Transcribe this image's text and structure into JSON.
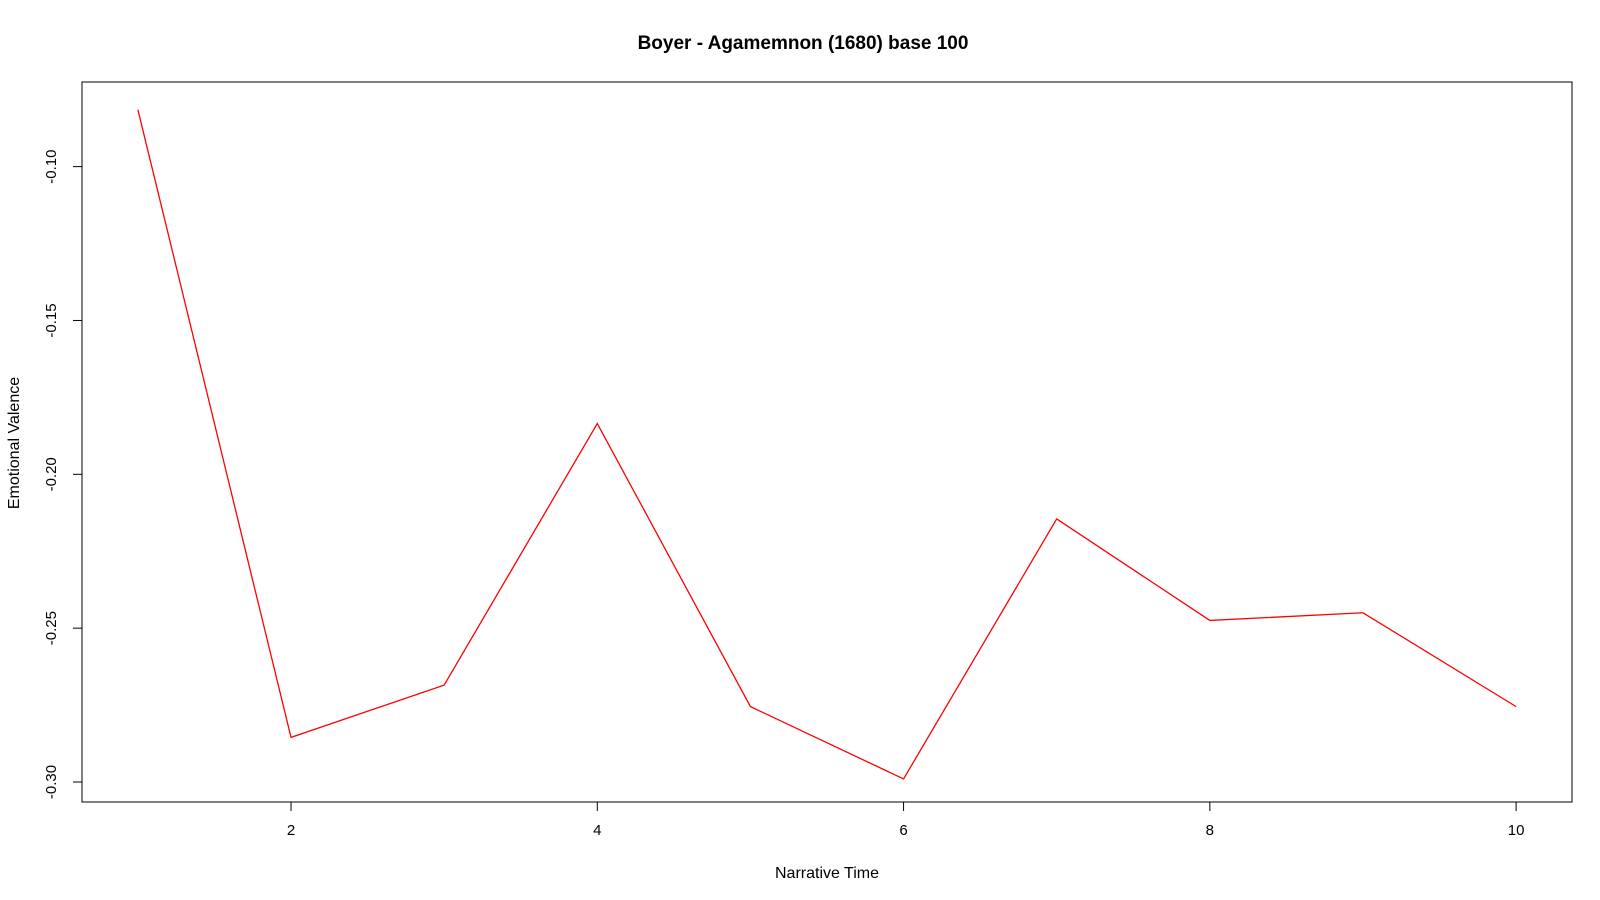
{
  "chart_data": {
    "type": "line",
    "title": "Boyer - Agamemnon (1680) base 100",
    "xlabel": "Narrative Time",
    "ylabel": "Emotional Valence",
    "x": [
      1,
      2,
      3,
      4,
      5,
      6,
      7,
      8,
      9,
      10
    ],
    "series": [
      {
        "values": [
          -0.0815,
          -0.2855,
          -0.2685,
          -0.1835,
          -0.2755,
          -0.299,
          -0.2145,
          -0.2475,
          -0.245,
          -0.2755
        ],
        "color": "#ff0000"
      }
    ],
    "xlim": [
      0.635,
      10.365
    ],
    "ylim": [
      -0.3065,
      -0.0725
    ],
    "x_ticks": [
      2,
      4,
      6,
      8,
      10
    ],
    "x_tick_labels": [
      "2",
      "4",
      "6",
      "8",
      "10"
    ],
    "y_ticks": [
      -0.3,
      -0.25,
      -0.2,
      -0.15,
      -0.1
    ],
    "y_tick_labels": [
      "-0.30",
      "-0.25",
      "-0.20",
      "-0.15",
      "-0.10"
    ],
    "grid": false,
    "legend": "none"
  }
}
